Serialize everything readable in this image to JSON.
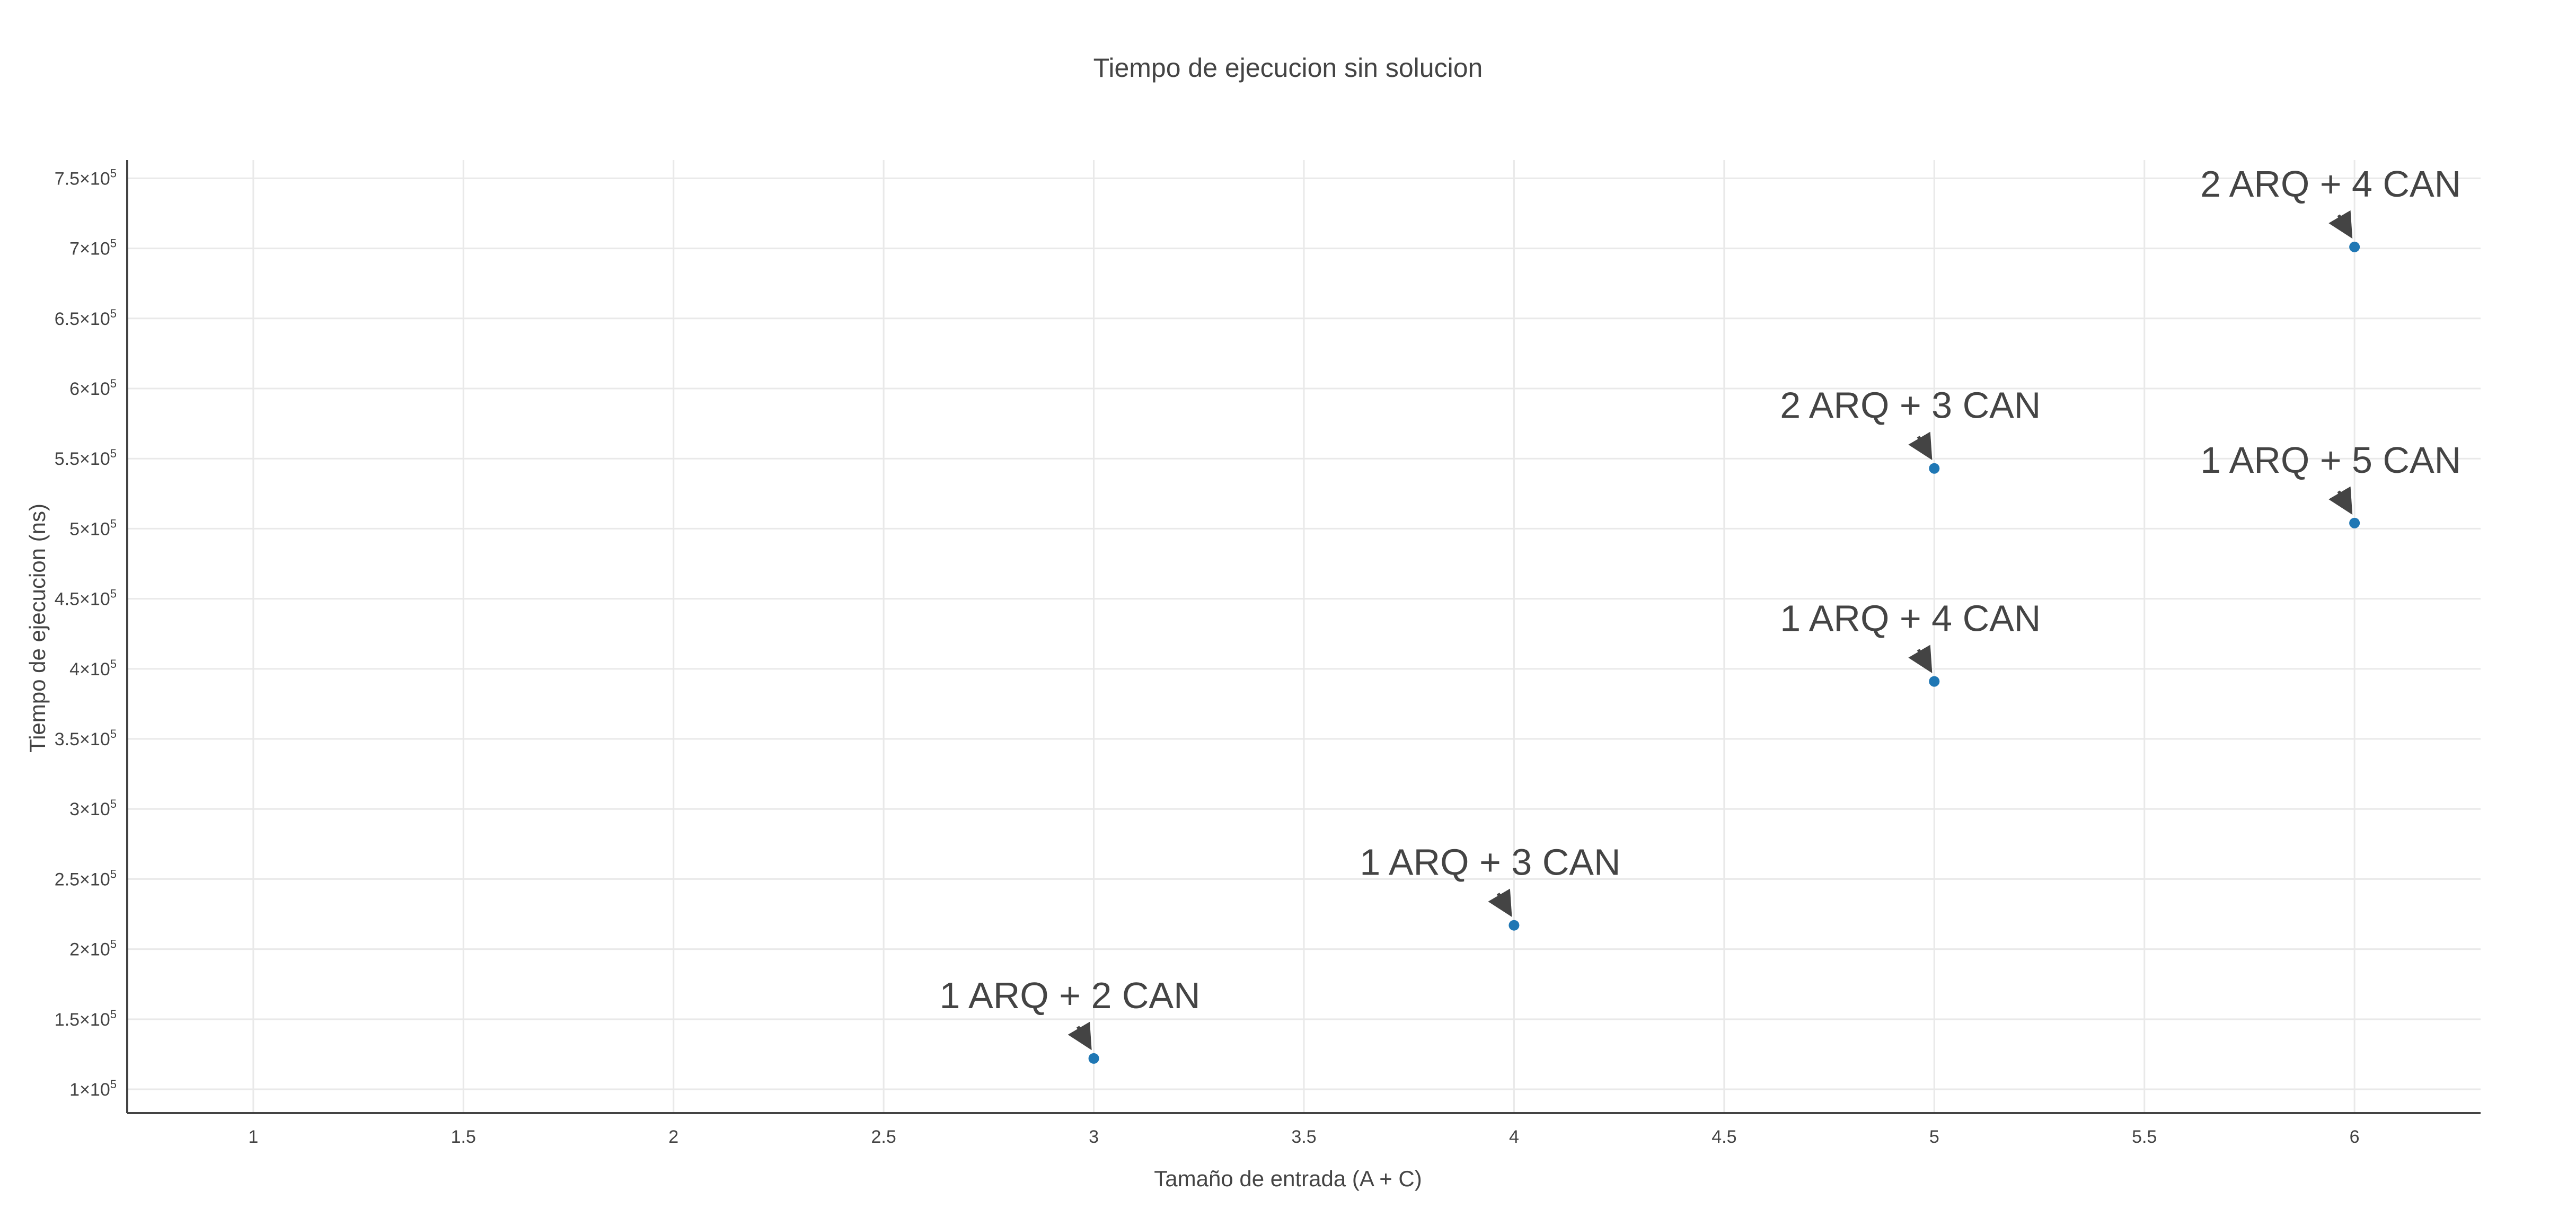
{
  "chart_data": {
    "type": "scatter",
    "title": "Tiempo de ejecucion sin solucion",
    "xlabel": "Tamaño de entrada (A + C)",
    "ylabel": "Tiempo de ejecucion (ns)",
    "xlim": [
      0.7,
      6.3
    ],
    "ylim": [
      83000,
      763000
    ],
    "x_ticks": [
      1,
      1.5,
      2,
      2.5,
      3,
      3.5,
      4,
      4.5,
      5,
      5.5,
      6
    ],
    "x_tick_labels": [
      "1",
      "1.5",
      "2",
      "2.5",
      "3",
      "3.5",
      "4",
      "4.5",
      "5",
      "5.5",
      "6"
    ],
    "y_ticks": [
      100000,
      150000,
      200000,
      250000,
      300000,
      350000,
      400000,
      450000,
      500000,
      550000,
      600000,
      650000,
      700000,
      750000
    ],
    "y_tick_mantissas": [
      "1",
      "1.5",
      "2",
      "2.5",
      "3",
      "3.5",
      "4",
      "4.5",
      "5",
      "5.5",
      "6",
      "6.5",
      "7",
      "7.5"
    ],
    "y_tick_exponent": "5",
    "grid": true,
    "marker_color": "#1f77b4",
    "points": [
      {
        "x": 3,
        "y": 122000,
        "label": "1 ARQ + 2 CAN"
      },
      {
        "x": 4,
        "y": 217000,
        "label": "1 ARQ + 3 CAN"
      },
      {
        "x": 5,
        "y": 391000,
        "label": "1 ARQ + 4 CAN"
      },
      {
        "x": 5,
        "y": 543000,
        "label": "2 ARQ + 3 CAN"
      },
      {
        "x": 6,
        "y": 504000,
        "label": "1 ARQ + 5 CAN"
      },
      {
        "x": 6,
        "y": 701000,
        "label": "2 ARQ + 4 CAN"
      }
    ]
  }
}
